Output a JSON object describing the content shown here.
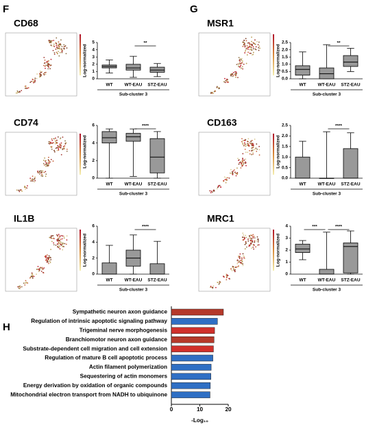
{
  "panel_labels": [
    "F",
    "G",
    "H"
  ],
  "chart_data": [
    {
      "type": "box",
      "title": "CD68",
      "y_label": "Log-normalized",
      "x_label": "Sub-cluster 3",
      "color": "#999999",
      "categories": [
        "WT",
        "WT-EAU",
        "STZ-EAU"
      ],
      "boxes": [
        {
          "min": 0.8,
          "q1": 1.5,
          "median": 1.7,
          "q3": 1.9,
          "max": 2.6
        },
        {
          "min": 0.2,
          "q1": 1.2,
          "median": 1.5,
          "q3": 2.0,
          "max": 3.1
        },
        {
          "min": 0.3,
          "q1": 0.9,
          "median": 1.2,
          "q3": 1.6,
          "max": 2.1
        }
      ],
      "ylim": [
        0,
        5
      ],
      "yticks": [
        0,
        1,
        2,
        3,
        4,
        5
      ],
      "significance": [
        {
          "pair": [
            "WT-EAU",
            "STZ-EAU"
          ],
          "label": "**"
        }
      ]
    },
    {
      "type": "box",
      "title": "CD74",
      "y_label": "Log-normalized",
      "x_label": "Sub-cluster 3",
      "color": "#999999",
      "categories": [
        "WT",
        "WT-EAU",
        "STZ-EAU"
      ],
      "boxes": [
        {
          "min": 0,
          "q1": 4.0,
          "median": 4.6,
          "q3": 5.3,
          "max": 5.6
        },
        {
          "min": 0.2,
          "q1": 4.2,
          "median": 4.7,
          "q3": 5.1,
          "max": 5.6
        },
        {
          "min": 0,
          "q1": 0.6,
          "median": 2.4,
          "q3": 4.5,
          "max": 5.3
        }
      ],
      "ylim": [
        0,
        6
      ],
      "yticks": [
        0,
        2,
        4,
        6
      ],
      "significance": [
        {
          "pair": [
            "WT-EAU",
            "STZ-EAU"
          ],
          "label": "****"
        }
      ]
    },
    {
      "type": "box",
      "title": "IL1B",
      "y_label": "Log-normalized",
      "x_label": "Sub-cluster 3",
      "color": "#999999",
      "categories": [
        "WT",
        "WT-EAU",
        "STZ-EAU"
      ],
      "boxes": [
        {
          "min": 0,
          "q1": 0,
          "median": 0,
          "q3": 1.4,
          "max": 3.6
        },
        {
          "min": 0,
          "q1": 1.0,
          "median": 2.0,
          "q3": 3.0,
          "max": 4.9
        },
        {
          "min": 0,
          "q1": 0,
          "median": 0,
          "q3": 1.3,
          "max": 4.1
        }
      ],
      "ylim": [
        0,
        6
      ],
      "yticks": [
        0,
        2,
        4,
        6
      ],
      "significance": [
        {
          "pair": [
            "WT-EAU",
            "STZ-EAU"
          ],
          "label": "****"
        }
      ]
    },
    {
      "type": "box",
      "title": "MSR1",
      "y_label": "Log-normalized",
      "x_label": "Sub-cluster 3",
      "color": "#999999",
      "categories": [
        "WT",
        "WT-EAU",
        "STZ-EAU"
      ],
      "boxes": [
        {
          "min": 0,
          "q1": 0.25,
          "median": 0.65,
          "q3": 0.9,
          "max": 1.85
        },
        {
          "min": 0,
          "q1": 0,
          "median": 0.35,
          "q3": 0.75,
          "max": 2.35
        },
        {
          "min": 0.5,
          "q1": 0.85,
          "median": 1.15,
          "q3": 1.6,
          "max": 2.1
        }
      ],
      "ylim": [
        0,
        2.5
      ],
      "yticks": [
        {
          "value": 0,
          "label": "0.0"
        },
        0.5,
        {
          "value": 1,
          "label": "1.0"
        },
        1.5,
        {
          "value": 2,
          "label": "2.0"
        },
        2.5
      ],
      "significance": [
        {
          "pair": [
            "WT-EAU",
            "STZ-EAU"
          ],
          "label": "**"
        }
      ]
    },
    {
      "type": "box",
      "title": "CD163",
      "y_label": "Log-normalized",
      "x_label": "Sub-cluster 3",
      "color": "#999999",
      "categories": [
        "WT",
        "WT-EAU",
        "STZ-EAU"
      ],
      "boxes": [
        {
          "min": 0,
          "q1": 0,
          "median": 0,
          "q3": 1.0,
          "max": 1.75
        },
        {
          "min": 0,
          "q1": 0,
          "median": 0,
          "q3": 0,
          "max": 2.2
        },
        {
          "min": 0,
          "q1": 0,
          "median": 0,
          "q3": 1.4,
          "max": 2.15
        }
      ],
      "ylim": [
        0,
        2.5
      ],
      "yticks": [
        {
          "value": 0,
          "label": "0.0"
        },
        0.5,
        {
          "value": 1,
          "label": "1.0"
        },
        1.5,
        {
          "value": 2,
          "label": "2.0"
        },
        2.5
      ],
      "significance": [
        {
          "pair": [
            "WT-EAU",
            "STZ-EAU"
          ],
          "label": "****"
        }
      ]
    },
    {
      "type": "box",
      "title": "MRC1",
      "y_label": "Log-normalized",
      "x_label": "Sub-cluster 3",
      "color": "#999999",
      "categories": [
        "WT",
        "WT-EAU",
        "STZ-EAU"
      ],
      "boxes": [
        {
          "min": 1.2,
          "q1": 1.8,
          "median": 2.1,
          "q3": 2.5,
          "max": 2.8
        },
        {
          "min": 0,
          "q1": 0,
          "median": 0,
          "q3": 0.4,
          "max": 3.5
        },
        {
          "min": 0,
          "q1": 0.1,
          "median": 2.3,
          "q3": 2.6,
          "max": 3.6
        }
      ],
      "ylim": [
        0,
        4
      ],
      "yticks": [
        0,
        1,
        2,
        3,
        4
      ],
      "significance": [
        {
          "pair": [
            "WT",
            "WT-EAU"
          ],
          "label": "***"
        },
        {
          "pair": [
            "WT-EAU",
            "STZ-EAU"
          ],
          "label": "****"
        }
      ]
    },
    {
      "type": "hbar",
      "x_label": "-Log₁₀",
      "categories": [
        "Sympathetic neuron axon guidance",
        "Regulation of intrinsic apoptotic signaling pathway",
        "Trigeminal nerve morphogenesis",
        "Branchiomotor neuron axon guidance",
        "Substrate-dependent cell migration and cell extension",
        "Regulation of mature B cell apoptotic process",
        "Actin filament polymerization",
        "Sequestering of actin monomers",
        "Energy derivation by oxidation of organic compounds",
        "Mitochondrial electron transport from NADH to ubiquinone"
      ],
      "values": [
        18.3,
        16.2,
        15.2,
        15.0,
        14.8,
        14.6,
        14.0,
        13.9,
        13.7,
        13.6
      ],
      "colors": [
        "#b5392a",
        "#2f6fc4",
        "#d0302b",
        "#b5392a",
        "#d0302b",
        "#2f6fc4",
        "#2f6fc4",
        "#2f6fc4",
        "#2f6fc4",
        "#2f6fc4"
      ],
      "xlim": [
        0,
        20
      ],
      "xticks": [
        0,
        10,
        20
      ]
    }
  ]
}
